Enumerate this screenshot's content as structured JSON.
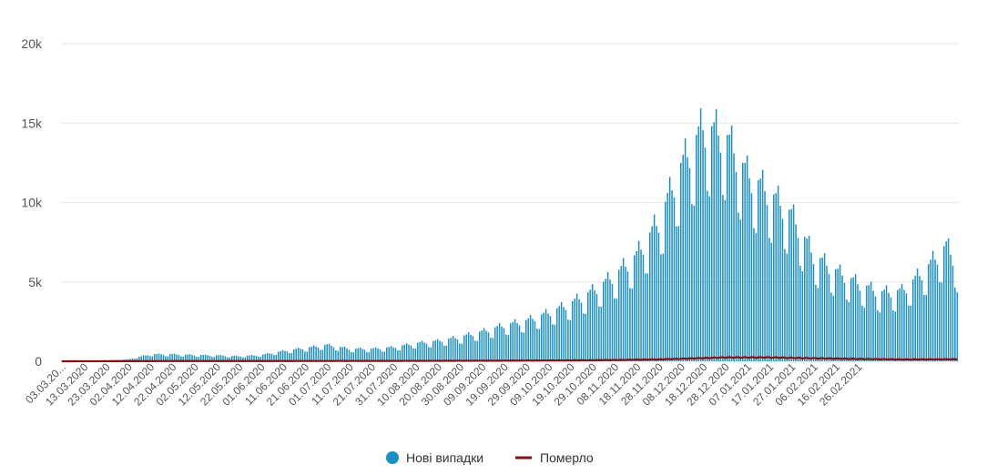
{
  "chart_data": {
    "type": "bar",
    "y_ticks": [
      "0",
      "5k",
      "10k",
      "15k",
      "20k"
    ],
    "ylim": [
      0,
      20000
    ],
    "grid": true,
    "legend_position": "bottom-center",
    "x_tick_labels": [
      "03.03.20...",
      "13.03.2020",
      "23.03.2020",
      "02.04.2020",
      "12.04.2020",
      "22.04.2020",
      "02.05.2020",
      "12.05.2020",
      "22.05.2020",
      "01.06.2020",
      "11.06.2020",
      "21.06.2020",
      "01.07.2020",
      "11.07.2020",
      "21.07.2020",
      "31.07.2020",
      "10.08.2020",
      "20.08.2020",
      "30.08.2020",
      "09.09.2020",
      "19.09.2020",
      "29.09.2020",
      "09.10.2020",
      "19.10.2020",
      "29.10.2020",
      "08.11.2020",
      "18.11.2020",
      "28.11.2020",
      "08.12.2020",
      "18.12.2020",
      "28.12.2020",
      "07.01.2021",
      "17.01.2021",
      "27.01.2021",
      "06.02.2021",
      "16.02.2021",
      "26.02.2021"
    ],
    "series": [
      {
        "name": "Нові випадки",
        "type": "bar",
        "color": "#1b8fc4",
        "control_points": [
          [
            0,
            0
          ],
          [
            10,
            2
          ],
          [
            20,
            40
          ],
          [
            30,
            120
          ],
          [
            40,
            450
          ],
          [
            50,
            450
          ],
          [
            60,
            400
          ],
          [
            70,
            380
          ],
          [
            80,
            320
          ],
          [
            90,
            400
          ],
          [
            100,
            650
          ],
          [
            110,
            850
          ],
          [
            120,
            1050
          ],
          [
            130,
            800
          ],
          [
            140,
            800
          ],
          [
            150,
            900
          ],
          [
            160,
            1150
          ],
          [
            170,
            1300
          ],
          [
            180,
            1550
          ],
          [
            190,
            1900
          ],
          [
            200,
            2300
          ],
          [
            210,
            2600
          ],
          [
            220,
            3100
          ],
          [
            230,
            3700
          ],
          [
            240,
            4500
          ],
          [
            250,
            5500
          ],
          [
            260,
            6800
          ],
          [
            270,
            9000
          ],
          [
            280,
            12500
          ],
          [
            290,
            15000
          ],
          [
            300,
            14500
          ],
          [
            310,
            12000
          ],
          [
            320,
            10800
          ],
          [
            330,
            9400
          ],
          [
            340,
            6800
          ],
          [
            350,
            5800
          ],
          [
            360,
            5000
          ],
          [
            370,
            4400
          ],
          [
            380,
            4500
          ],
          [
            390,
            5800
          ],
          [
            400,
            7400
          ],
          [
            405,
            6200
          ]
        ],
        "weekly_pattern": [
          1.0,
          1.02,
          1.08,
          0.97,
          0.9,
          0.72,
          0.7
        ]
      },
      {
        "name": "Померло",
        "type": "line",
        "color": "#8b0d0d",
        "control_points": [
          [
            0,
            0
          ],
          [
            50,
            12
          ],
          [
            100,
            15
          ],
          [
            150,
            20
          ],
          [
            200,
            35
          ],
          [
            240,
            60
          ],
          [
            270,
            110
          ],
          [
            290,
            190
          ],
          [
            300,
            230
          ],
          [
            320,
            230
          ],
          [
            340,
            180
          ],
          [
            360,
            140
          ],
          [
            380,
            110
          ],
          [
            405,
            120
          ]
        ]
      }
    ],
    "days": 406,
    "first_date": "03.03.2020"
  }
}
